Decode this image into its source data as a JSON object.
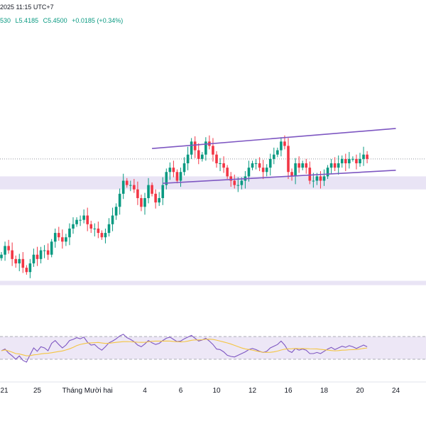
{
  "header": {
    "datetime": "2025 11:15 UTC+7",
    "ohlc_partial": "530",
    "low": "L5.4185",
    "close": "C5.4500",
    "change": "+0.0185 (+0.34%)"
  },
  "colors": {
    "up": "#089981",
    "down": "#f23645",
    "channel": "#7e57c2",
    "zone_fill": "#e9e4f5",
    "rsi_line": "#7e57c2",
    "rsi_ma": "#f4c542",
    "rsi_band": "#ede7f6",
    "grid": "#f0f3fa",
    "text": "#131722"
  },
  "chart_data": {
    "type": "candlestick",
    "price_ylim": [
      5.29,
      5.6
    ],
    "dashed_level": 5.45,
    "zones": [
      {
        "from": 5.415,
        "to": 5.43
      },
      {
        "from": 5.305,
        "to": 5.31
      }
    ],
    "x_ticks": [
      {
        "i": 0,
        "label": "21"
      },
      {
        "i": 10,
        "label": "25"
      },
      {
        "i": 24,
        "label": "Tháng Mười hai"
      },
      {
        "i": 40,
        "label": "4"
      },
      {
        "i": 50,
        "label": "6"
      },
      {
        "i": 60,
        "label": "10"
      },
      {
        "i": 70,
        "label": "12"
      },
      {
        "i": 80,
        "label": "16"
      },
      {
        "i": 90,
        "label": "18"
      },
      {
        "i": 100,
        "label": "20"
      },
      {
        "i": 110,
        "label": "24"
      }
    ],
    "channel": {
      "upper": [
        [
          42,
          5.462
        ],
        [
          110,
          5.485
        ]
      ],
      "lower": [
        [
          45,
          5.422
        ],
        [
          110,
          5.437
        ]
      ]
    },
    "closes": [
      5.34,
      5.35,
      5.345,
      5.335,
      5.33,
      5.335,
      5.325,
      5.32,
      5.33,
      5.34,
      5.335,
      5.345,
      5.345,
      5.34,
      5.355,
      5.365,
      5.36,
      5.355,
      5.36,
      5.37,
      5.375,
      5.38,
      5.38,
      5.385,
      5.375,
      5.37,
      5.37,
      5.365,
      5.36,
      5.365,
      5.375,
      5.385,
      5.395,
      5.41,
      5.425,
      5.42,
      5.42,
      5.415,
      5.405,
      5.395,
      5.405,
      5.42,
      5.41,
      5.4,
      5.405,
      5.42,
      5.435,
      5.44,
      5.435,
      5.425,
      5.435,
      5.445,
      5.455,
      5.47,
      5.46,
      5.45,
      5.455,
      5.47,
      5.465,
      5.455,
      5.445,
      5.445,
      5.44,
      5.43,
      5.425,
      5.42,
      5.42,
      5.425,
      5.43,
      5.44,
      5.445,
      5.445,
      5.44,
      5.435,
      5.44,
      5.45,
      5.455,
      5.46,
      5.47,
      5.465,
      5.435,
      5.43,
      5.445,
      5.44,
      5.445,
      5.44,
      5.425,
      5.425,
      5.43,
      5.425,
      5.43,
      5.44,
      5.445,
      5.44,
      5.445,
      5.45,
      5.445,
      5.45,
      5.45,
      5.445,
      5.45,
      5.455,
      5.45
    ],
    "rsi_ylim": [
      0,
      100
    ],
    "rsi_band": [
      30,
      70
    ],
    "rsi": [
      45,
      48,
      41,
      36,
      30,
      36,
      28,
      25,
      38,
      50,
      44,
      52,
      50,
      45,
      58,
      63,
      56,
      50,
      55,
      63,
      65,
      68,
      66,
      69,
      60,
      55,
      56,
      50,
      46,
      52,
      59,
      62,
      66,
      71,
      74,
      68,
      65,
      61,
      55,
      52,
      57,
      63,
      59,
      56,
      58,
      63,
      67,
      69,
      65,
      61,
      62,
      66,
      69,
      72,
      67,
      62,
      64,
      67,
      62,
      56,
      48,
      47,
      43,
      37,
      35,
      34,
      37,
      40,
      43,
      47,
      49,
      47,
      44,
      42,
      44,
      50,
      53,
      56,
      62,
      55,
      45,
      42,
      49,
      46,
      48,
      46,
      40,
      40,
      42,
      40,
      44,
      48,
      51,
      47,
      50,
      53,
      51,
      54,
      52,
      49,
      52,
      55,
      52
    ]
  }
}
